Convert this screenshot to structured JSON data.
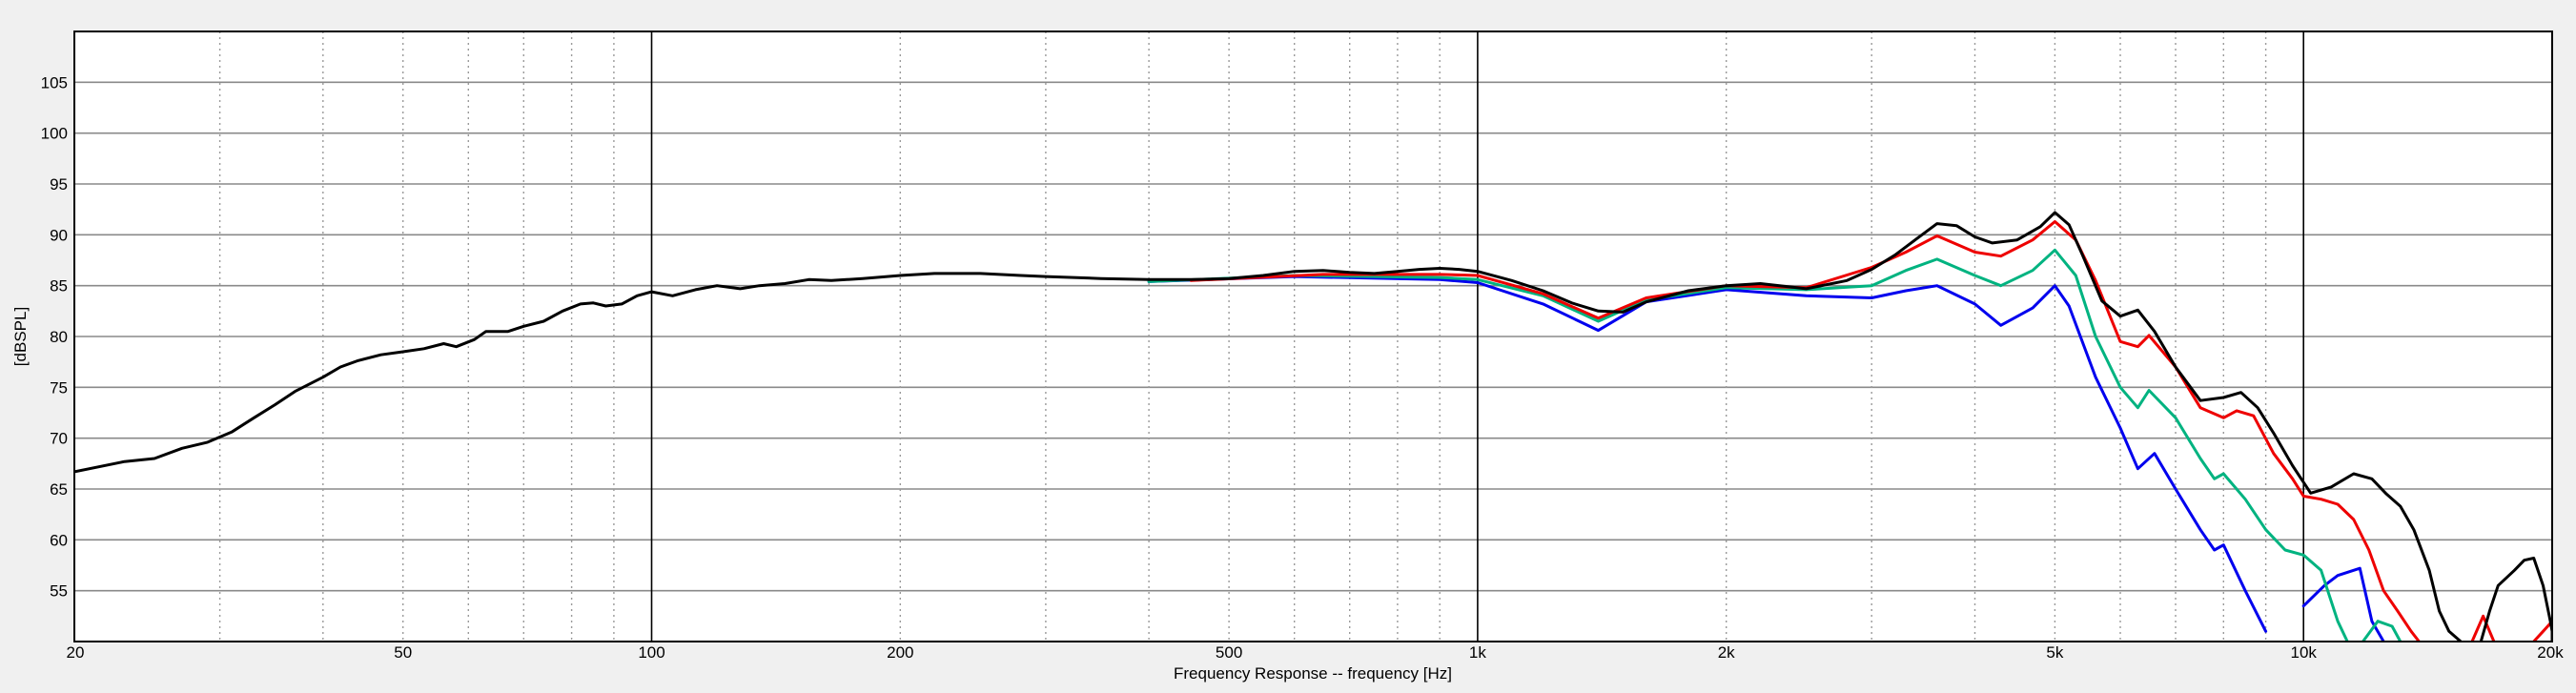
{
  "chart_data": {
    "type": "line",
    "title": "",
    "xlabel": "Frequency Response -- frequency [Hz]",
    "ylabel": "[dBSPL]",
    "xscale": "log",
    "xlim": [
      20,
      20000
    ],
    "ylim": [
      50,
      110
    ],
    "grid": true,
    "legend": "none",
    "x_tick_values": [
      20,
      50,
      100,
      200,
      500,
      1000,
      2000,
      5000,
      10000,
      20000
    ],
    "x_tick_labels": [
      "20",
      "50",
      "100",
      "200",
      "500",
      "1k",
      "2k",
      "5k",
      "10k",
      "20k"
    ],
    "x_major_gridlines": [
      100,
      1000,
      10000
    ],
    "x_minor_gridlines": [
      30,
      40,
      50,
      60,
      70,
      80,
      90,
      200,
      300,
      400,
      500,
      600,
      700,
      800,
      900,
      2000,
      3000,
      4000,
      5000,
      6000,
      7000,
      8000,
      9000
    ],
    "y_tick_values": [
      55,
      60,
      65,
      70,
      75,
      80,
      85,
      90,
      95,
      100,
      105
    ],
    "y_tick_labels": [
      "55",
      "60",
      "65",
      "70",
      "75",
      "80",
      "85",
      "90",
      "95",
      "100",
      "105"
    ],
    "series": [
      {
        "color": "#0000ee",
        "points": [
          [
            400,
            85.4
          ],
          [
            600,
            85.9
          ],
          [
            900,
            85.6
          ],
          [
            1000,
            85.3
          ],
          [
            1200,
            83.2
          ],
          [
            1400,
            80.6
          ],
          [
            1600,
            83.4
          ],
          [
            2000,
            84.6
          ],
          [
            2500,
            84.0
          ],
          [
            3000,
            83.8
          ],
          [
            3300,
            84.5
          ],
          [
            3600,
            85.0
          ],
          [
            4000,
            83.2
          ],
          [
            4300,
            81.1
          ],
          [
            4700,
            82.8
          ],
          [
            5000,
            85.0
          ],
          [
            5200,
            83.0
          ],
          [
            5600,
            76.0
          ],
          [
            6000,
            71.0
          ],
          [
            6300,
            67.0
          ],
          [
            6600,
            68.5
          ],
          [
            7000,
            65.0
          ],
          [
            7500,
            61.0
          ],
          [
            7800,
            59.0
          ],
          [
            8000,
            59.5
          ],
          [
            8500,
            55.0
          ],
          [
            9000,
            51.0
          ]
        ]
      },
      {
        "color": "#0000ee",
        "points": [
          [
            10000,
            53.5
          ],
          [
            10600,
            55.5
          ],
          [
            11000,
            56.5
          ],
          [
            11700,
            57.2
          ],
          [
            12100,
            52.0
          ],
          [
            12500,
            50.0
          ]
        ]
      },
      {
        "color": "#00b380",
        "points": [
          [
            400,
            85.4
          ],
          [
            600,
            86.0
          ],
          [
            900,
            85.8
          ],
          [
            1000,
            85.6
          ],
          [
            1200,
            84.0
          ],
          [
            1400,
            81.5
          ],
          [
            1600,
            83.6
          ],
          [
            2000,
            84.8
          ],
          [
            2500,
            84.6
          ],
          [
            3000,
            85.0
          ],
          [
            3300,
            86.5
          ],
          [
            3600,
            87.6
          ],
          [
            4000,
            86.0
          ],
          [
            4300,
            85.0
          ],
          [
            4700,
            86.5
          ],
          [
            5000,
            88.5
          ],
          [
            5300,
            86.0
          ],
          [
            5600,
            80.0
          ],
          [
            6000,
            75.0
          ],
          [
            6300,
            73.0
          ],
          [
            6500,
            74.7
          ],
          [
            7000,
            72.0
          ],
          [
            7500,
            68.0
          ],
          [
            7800,
            66.0
          ],
          [
            8000,
            66.5
          ],
          [
            8500,
            64.0
          ],
          [
            9000,
            61.0
          ],
          [
            9500,
            59.0
          ],
          [
            10000,
            58.5
          ],
          [
            10500,
            57.0
          ],
          [
            11000,
            52.0
          ],
          [
            11300,
            50.0
          ]
        ]
      },
      {
        "color": "#00b380",
        "points": [
          [
            11800,
            50.0
          ],
          [
            12300,
            52.0
          ],
          [
            12800,
            51.5
          ],
          [
            13100,
            50.0
          ]
        ]
      },
      {
        "color": "#ee0000",
        "points": [
          [
            450,
            85.5
          ],
          [
            650,
            86.1
          ],
          [
            900,
            86.1
          ],
          [
            1000,
            86.0
          ],
          [
            1200,
            84.2
          ],
          [
            1400,
            81.8
          ],
          [
            1600,
            83.8
          ],
          [
            2000,
            85.0
          ],
          [
            2500,
            84.8
          ],
          [
            3000,
            86.8
          ],
          [
            3300,
            88.3
          ],
          [
            3600,
            89.9
          ],
          [
            4000,
            88.3
          ],
          [
            4300,
            87.9
          ],
          [
            4700,
            89.5
          ],
          [
            5000,
            91.3
          ],
          [
            5300,
            89.5
          ],
          [
            5600,
            85.5
          ],
          [
            6000,
            79.5
          ],
          [
            6300,
            79.0
          ],
          [
            6500,
            80.1
          ],
          [
            7000,
            77.0
          ],
          [
            7500,
            73.0
          ],
          [
            8000,
            72.0
          ],
          [
            8300,
            72.7
          ],
          [
            8700,
            72.2
          ],
          [
            9200,
            68.5
          ],
          [
            9700,
            66.0
          ],
          [
            10000,
            64.3
          ],
          [
            10500,
            64.0
          ],
          [
            11000,
            63.5
          ],
          [
            11500,
            62.0
          ],
          [
            12000,
            59.0
          ],
          [
            12500,
            55.0
          ],
          [
            13000,
            53.0
          ],
          [
            13500,
            51.0
          ],
          [
            13800,
            50.0
          ]
        ]
      },
      {
        "color": "#ee0000",
        "points": [
          [
            16000,
            50.0
          ],
          [
            16500,
            52.5
          ],
          [
            16800,
            51.0
          ],
          [
            17000,
            50.0
          ]
        ]
      },
      {
        "color": "#ee0000",
        "points": [
          [
            19000,
            50.0
          ],
          [
            19500,
            51.0
          ],
          [
            20000,
            52.0
          ]
        ]
      },
      {
        "color": "#000000",
        "points": [
          [
            20,
            66.7
          ],
          [
            23,
            67.7
          ],
          [
            25,
            68.0
          ],
          [
            27,
            69.0
          ],
          [
            29,
            69.6
          ],
          [
            31,
            70.6
          ],
          [
            33,
            72.0
          ],
          [
            35,
            73.3
          ],
          [
            37,
            74.6
          ],
          [
            40,
            76.0
          ],
          [
            42,
            77.0
          ],
          [
            44,
            77.6
          ],
          [
            47,
            78.2
          ],
          [
            50,
            78.5
          ],
          [
            53,
            78.8
          ],
          [
            56,
            79.3
          ],
          [
            58,
            79.0
          ],
          [
            61,
            79.7
          ],
          [
            63,
            80.5
          ],
          [
            67,
            80.5
          ],
          [
            70,
            81.0
          ],
          [
            74,
            81.5
          ],
          [
            78,
            82.5
          ],
          [
            82,
            83.2
          ],
          [
            85,
            83.3
          ],
          [
            88,
            83.0
          ],
          [
            92,
            83.2
          ],
          [
            96,
            84.0
          ],
          [
            100,
            84.4
          ],
          [
            106,
            84.0
          ],
          [
            113,
            84.6
          ],
          [
            120,
            85.0
          ],
          [
            128,
            84.7
          ],
          [
            135,
            85.0
          ],
          [
            145,
            85.2
          ],
          [
            155,
            85.6
          ],
          [
            165,
            85.5
          ],
          [
            180,
            85.7
          ],
          [
            200,
            86.0
          ],
          [
            220,
            86.2
          ],
          [
            250,
            86.2
          ],
          [
            280,
            86.0
          ],
          [
            300,
            85.9
          ],
          [
            350,
            85.7
          ],
          [
            400,
            85.6
          ],
          [
            450,
            85.6
          ],
          [
            500,
            85.7
          ],
          [
            550,
            86.0
          ],
          [
            600,
            86.4
          ],
          [
            650,
            86.5
          ],
          [
            700,
            86.3
          ],
          [
            750,
            86.2
          ],
          [
            800,
            86.4
          ],
          [
            850,
            86.6
          ],
          [
            900,
            86.7
          ],
          [
            950,
            86.6
          ],
          [
            1000,
            86.4
          ],
          [
            1100,
            85.5
          ],
          [
            1200,
            84.5
          ],
          [
            1300,
            83.3
          ],
          [
            1400,
            82.5
          ],
          [
            1500,
            82.4
          ],
          [
            1600,
            83.4
          ],
          [
            1800,
            84.5
          ],
          [
            2000,
            85.0
          ],
          [
            2200,
            85.2
          ],
          [
            2500,
            84.7
          ],
          [
            2800,
            85.5
          ],
          [
            3000,
            86.6
          ],
          [
            3200,
            88.0
          ],
          [
            3400,
            89.6
          ],
          [
            3600,
            91.1
          ],
          [
            3800,
            90.9
          ],
          [
            4000,
            89.8
          ],
          [
            4200,
            89.2
          ],
          [
            4500,
            89.5
          ],
          [
            4800,
            90.8
          ],
          [
            5000,
            92.2
          ],
          [
            5200,
            91.0
          ],
          [
            5400,
            88.0
          ],
          [
            5700,
            83.5
          ],
          [
            6000,
            82.0
          ],
          [
            6300,
            82.6
          ],
          [
            6600,
            80.5
          ],
          [
            7000,
            77.0
          ],
          [
            7500,
            73.7
          ],
          [
            8000,
            74.0
          ],
          [
            8400,
            74.5
          ],
          [
            8800,
            73.0
          ],
          [
            9200,
            70.5
          ],
          [
            9700,
            67.3
          ],
          [
            10200,
            64.6
          ],
          [
            10800,
            65.2
          ],
          [
            11500,
            66.5
          ],
          [
            12100,
            66.0
          ],
          [
            12600,
            64.5
          ],
          [
            13100,
            63.3
          ],
          [
            13600,
            61.0
          ],
          [
            14200,
            57.0
          ],
          [
            14600,
            53.0
          ],
          [
            15000,
            51.0
          ],
          [
            15500,
            50.0
          ]
        ]
      },
      {
        "color": "#000000",
        "points": [
          [
            16400,
            50.0
          ],
          [
            16800,
            53.0
          ],
          [
            17200,
            55.5
          ],
          [
            18000,
            57.0
          ],
          [
            18500,
            58.0
          ],
          [
            19000,
            58.2
          ],
          [
            19500,
            55.5
          ],
          [
            19900,
            52.0
          ],
          [
            20000,
            51.0
          ]
        ]
      },
      {
        "color": "#000000",
        "points": [
          [
            20000,
            50.0
          ],
          [
            20000,
            51.5
          ]
        ]
      }
    ]
  }
}
